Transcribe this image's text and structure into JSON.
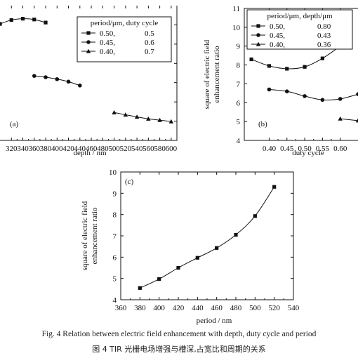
{
  "chart_data": [
    {
      "panel": "(a)",
      "type": "line",
      "xlabel": "depth / nm",
      "x_ticks": [
        "320",
        "340",
        "360",
        "380",
        "400",
        "420",
        "440",
        "460",
        "480",
        "500",
        "520",
        "540",
        "560",
        "580",
        "600"
      ],
      "x_tick_values": [
        320,
        340,
        360,
        380,
        400,
        420,
        440,
        460,
        480,
        500,
        520,
        540,
        560,
        580,
        600
      ],
      "xlim": [
        300,
        610
      ],
      "ylim": [
        4,
        11
      ],
      "legend_title": "period/μm, duty cycle",
      "legend_position": "top-right",
      "series": [
        {
          "name": "0.50,",
          "param": "0.5",
          "marker": "square",
          "x": [
            300,
            320,
            340,
            360,
            380
          ],
          "y": [
            10.05,
            10.25,
            10.32,
            10.28,
            10.12
          ]
        },
        {
          "name": "0.45,",
          "param": "0.6",
          "marker": "circle",
          "x": [
            360,
            380,
            400,
            420,
            440
          ],
          "y": [
            7.35,
            7.28,
            7.18,
            7.05,
            6.85
          ]
        },
        {
          "name": "0.40,",
          "param": "0.7",
          "marker": "triangle",
          "x": [
            500,
            520,
            540,
            560,
            580,
            600
          ],
          "y": [
            5.45,
            5.33,
            5.22,
            5.12,
            5.05,
            4.98
          ]
        }
      ]
    },
    {
      "panel": "(b)",
      "type": "line",
      "xlabel": "duty cycle",
      "ylabel": "square of electric field enhancement ratio",
      "ylabel_lines": [
        "square of electric field",
        "enhancement ratio"
      ],
      "x_ticks": [
        "0.40",
        "0.45",
        "0.50",
        "0.55",
        "0.60"
      ],
      "x_tick_values": [
        0.4,
        0.45,
        0.5,
        0.55,
        0.6
      ],
      "xlim": [
        0.33,
        0.65
      ],
      "y_ticks": [
        "4",
        "5",
        "6",
        "7",
        "8",
        "9",
        "10",
        "11"
      ],
      "y_tick_values": [
        4,
        5,
        6,
        7,
        8,
        9,
        10,
        11
      ],
      "ylim": [
        4,
        11
      ],
      "legend_title": "period/μm, depth/μm",
      "legend_position": "top",
      "series": [
        {
          "name": "0.50,",
          "param": "0.80",
          "marker": "square",
          "x": [
            0.35,
            0.4,
            0.45,
            0.5,
            0.55,
            0.6
          ],
          "y": [
            8.3,
            7.95,
            7.8,
            7.9,
            8.35,
            9.0
          ]
        },
        {
          "name": "0.45,",
          "param": "0.43",
          "marker": "circle",
          "x": [
            0.4,
            0.45,
            0.5,
            0.55,
            0.6,
            0.65
          ],
          "y": [
            6.7,
            6.6,
            6.35,
            6.15,
            6.2,
            6.45
          ]
        },
        {
          "name": "0.40,",
          "param": "0.36",
          "marker": "triangle",
          "x": [
            0.6,
            0.65
          ],
          "y": [
            5.15,
            5.05
          ]
        }
      ]
    },
    {
      "panel": "(c)",
      "type": "line",
      "xlabel": "period / nm",
      "ylabel": "square of electric field enhancement ratio",
      "ylabel_lines": [
        "square of electric field",
        "enhancement ratio"
      ],
      "x_ticks": [
        "360",
        "380",
        "400",
        "420",
        "440",
        "460",
        "480",
        "500",
        "520",
        "540"
      ],
      "x_tick_values": [
        360,
        380,
        400,
        420,
        440,
        460,
        480,
        500,
        520,
        540
      ],
      "xlim": [
        360,
        540
      ],
      "y_ticks": [
        "4",
        "5",
        "6",
        "7",
        "8",
        "9",
        "10"
      ],
      "y_tick_values": [
        4,
        5,
        6,
        7,
        8,
        9,
        10
      ],
      "ylim": [
        4,
        10
      ],
      "series": [
        {
          "marker": "square",
          "x": [
            380,
            400,
            420,
            440,
            460,
            480,
            500,
            520
          ],
          "y": [
            4.55,
            4.97,
            5.5,
            5.97,
            6.43,
            7.05,
            7.93,
            9.3
          ]
        }
      ]
    }
  ],
  "caption": {
    "en": "Fig. 4   Relation between electric field enhancement with depth, duty cycle and period",
    "zh": "图 4   TIR 光栅电场增强与槽深,占宽比和周期的关系"
  },
  "colors": {
    "ink": "#111111",
    "background": "#ffffff"
  }
}
